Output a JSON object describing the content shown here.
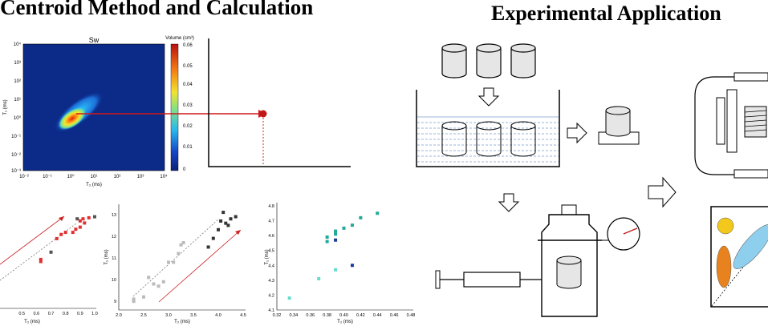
{
  "titles": {
    "left": "Centroid Method and Calculation",
    "right": "Experimental Application"
  },
  "heatmap": {
    "title": "Sw",
    "colorbar_title": "Volume (cm³)",
    "colorbar_ticks": [
      "0.06",
      "0.05",
      "0.04",
      "0.03",
      "0.02",
      "0.01",
      "0"
    ],
    "xlabel": "T₂ (ms)",
    "ylabel": "T₁ (ms)",
    "x_ticks": [
      "10⁻²",
      "10⁻¹",
      "10⁰",
      "10¹",
      "10²",
      "10³",
      "10⁴"
    ],
    "y_ticks": [
      "10⁴",
      "10³",
      "10²",
      "10¹",
      "10⁰",
      "10⁻¹",
      "10⁻²",
      "10⁻³"
    ]
  },
  "chart_data": [
    {
      "type": "scatter",
      "id": "scatter-1",
      "xlabel": "T₂ (ms)",
      "ylabel": "",
      "x_ticks": [
        "0.5",
        "0.6",
        "0.7",
        "0.8",
        "0.9",
        "1.0"
      ],
      "xlim": [
        0.35,
        1.0
      ],
      "ylim": [
        0,
        10
      ],
      "series": [
        {
          "color": "#e03030",
          "points": [
            [
              0.63,
              4.7
            ],
            [
              0.63,
              4.5
            ],
            [
              0.74,
              6.7
            ],
            [
              0.77,
              7.1
            ],
            [
              0.8,
              7.3
            ],
            [
              0.85,
              7.3
            ],
            [
              0.87,
              7.6
            ],
            [
              0.9,
              7.8
            ],
            [
              0.9,
              8.4
            ],
            [
              0.92,
              8.6
            ],
            [
              0.93,
              8.2
            ],
            [
              0.96,
              8.7
            ]
          ]
        },
        {
          "color": "#555555",
          "points": [
            [
              0.7,
              5.4
            ],
            [
              0.88,
              8.6
            ],
            [
              1.0,
              8.8
            ]
          ]
        }
      ]
    },
    {
      "type": "scatter",
      "id": "scatter-2",
      "xlabel": "T₂ (ms)",
      "ylabel": "T₁ (ms)",
      "x_ticks": [
        "2.0",
        "2.5",
        "3.0",
        "3.5",
        "4.0",
        "4.5"
      ],
      "y_ticks": [
        "9",
        "10",
        "11",
        "12",
        "13"
      ],
      "xlim": [
        2.0,
        4.5
      ],
      "ylim": [
        8.6,
        13.4
      ],
      "series": [
        {
          "color": "#bbbbbb",
          "points": [
            [
              2.3,
              9.0
            ],
            [
              2.3,
              9.1
            ],
            [
              2.5,
              9.2
            ],
            [
              2.6,
              10.1
            ],
            [
              2.7,
              9.8
            ],
            [
              2.8,
              9.7
            ],
            [
              2.9,
              9.9
            ],
            [
              3.0,
              10.8
            ],
            [
              3.1,
              10.8
            ],
            [
              3.2,
              11.2
            ],
            [
              3.25,
              11.6
            ],
            [
              3.3,
              11.7
            ]
          ]
        },
        {
          "color": "#333333",
          "points": [
            [
              3.8,
              11.5
            ],
            [
              3.9,
              11.9
            ],
            [
              4.0,
              12.3
            ],
            [
              4.05,
              12.7
            ],
            [
              4.1,
              13.1
            ],
            [
              4.15,
              12.6
            ],
            [
              4.2,
              12.5
            ],
            [
              4.25,
              12.8
            ],
            [
              4.35,
              12.9
            ]
          ]
        }
      ]
    },
    {
      "type": "scatter",
      "id": "scatter-3",
      "xlabel": "T₂ (ms)",
      "ylabel": "T₁ (ms)",
      "x_ticks": [
        "0.32",
        "0.34",
        "0.36",
        "0.38",
        "0.40",
        "0.42",
        "0.44",
        "0.46",
        "0.48"
      ],
      "y_ticks": [
        "4.1",
        "4.2",
        "4.3",
        "4.4",
        "4.5",
        "4.6",
        "4.7",
        "4.8"
      ],
      "xlim": [
        0.32,
        0.48
      ],
      "ylim": [
        4.1,
        4.8
      ],
      "series": [
        {
          "color": "#22aa99",
          "points": [
            [
              0.38,
              4.56
            ],
            [
              0.38,
              4.59
            ],
            [
              0.39,
              4.61
            ],
            [
              0.39,
              4.63
            ],
            [
              0.4,
              4.65
            ],
            [
              0.41,
              4.67
            ],
            [
              0.42,
              4.72
            ],
            [
              0.44,
              4.75
            ]
          ]
        },
        {
          "color": "#1a3aa0",
          "points": [
            [
              0.39,
              4.57
            ],
            [
              0.41,
              4.4
            ]
          ]
        },
        {
          "color": "#66ddcc",
          "points": [
            [
              0.335,
              4.18
            ],
            [
              0.37,
              4.31
            ],
            [
              0.39,
              4.37
            ]
          ]
        }
      ]
    }
  ]
}
